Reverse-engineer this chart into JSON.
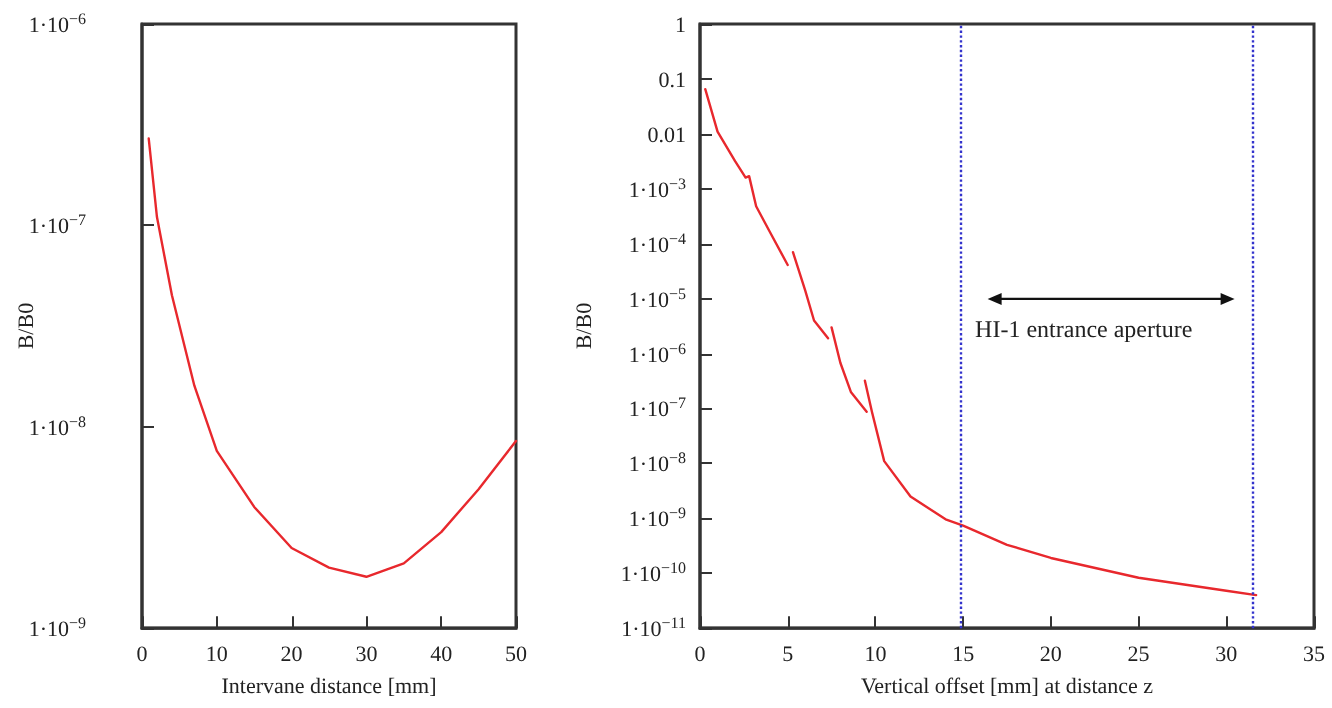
{
  "chart_data": [
    {
      "type": "line",
      "xlabel": "Intervane distance [mm]",
      "ylabel": "B/B0",
      "log": "y",
      "grid": false,
      "marker": "none",
      "line_style": "solid",
      "xlim": [
        0,
        50
      ],
      "xticks": [
        0,
        10,
        20,
        30,
        40,
        50
      ],
      "ylim": [
        1e-09,
        1e-06
      ],
      "yticks": [
        {
          "value": 1e-09,
          "label": "1·10$^{−9}$"
        },
        {
          "value": 1e-08,
          "label": "1·10$^{−8}$"
        },
        {
          "value": 1e-07,
          "label": "1·10$^{−7}$"
        },
        {
          "value": 1e-06,
          "label": "1·10$^{−6}$"
        }
      ],
      "series": [
        {
          "color": "#e8282d",
          "x": [
            0.9,
            2,
            4,
            7,
            10,
            15,
            20,
            25,
            30,
            35,
            40,
            45,
            50
          ],
          "values": [
            2.7e-07,
            1.1e-07,
            4.5e-08,
            1.6e-08,
            7.6e-09,
            4e-09,
            2.5e-09,
            2e-09,
            1.8e-09,
            2.1e-09,
            3e-09,
            4.9e-09,
            8.5e-09
          ]
        }
      ]
    },
    {
      "type": "line",
      "xlabel": "Vertical offset [mm] at distance z",
      "ylabel": "B/B0",
      "log": "y",
      "grid": false,
      "marker": "none",
      "line_style": "solid",
      "xlim": [
        0,
        35
      ],
      "xticks": [
        0,
        5,
        10,
        15,
        20,
        25,
        30,
        35
      ],
      "ylim": [
        1e-11,
        1
      ],
      "yticks": [
        {
          "value": 1e-11,
          "label": "1·10$^{−11}$"
        },
        {
          "value": 1e-10,
          "label": "1·10$^{−10}$"
        },
        {
          "value": 1e-09,
          "label": "1·10$^{−9}$"
        },
        {
          "value": 1e-08,
          "label": "1·10$^{−8}$"
        },
        {
          "value": 1e-07,
          "label": "1·10$^{−7}$"
        },
        {
          "value": 1e-06,
          "label": "1·10$^{−6}$"
        },
        {
          "value": 1e-05,
          "label": "1·10$^{−5}$"
        },
        {
          "value": 0.0001,
          "label": "1·10$^{−4}$"
        },
        {
          "value": 0.001,
          "label": "1·10$^{−3}$"
        },
        0.01,
        0.1,
        1
      ],
      "series": [
        {
          "color": "#e8282d",
          "x": [
            0.3,
            1,
            2,
            2.6,
            2.8,
            3.2,
            4,
            5,
            5.1,
            5.3,
            6,
            6.5,
            7.3,
            7.4,
            7.5,
            8,
            8.6,
            9.5,
            9.45,
            9.4,
            9.8,
            10.5,
            12,
            14,
            15,
            17.5,
            20,
            25,
            30,
            31.7
          ],
          "values": [
            0.065,
            0.011,
            0.0032,
            0.0016,
            0.0017,
            0.00048,
            0.00016,
            4.1e-05,
            null,
            7e-05,
            1.4e-05,
            4e-06,
            1.9e-06,
            null,
            3e-06,
            6.8e-07,
            2e-07,
            8.7e-08,
            null,
            3.2e-07,
            8.7e-08,
            1.1e-08,
            2.5e-09,
            9.6e-10,
            7.4e-10,
            3.3e-10,
            1.9e-10,
            8.3e-11,
            4.8e-11,
            4e-11
          ]
        }
      ],
      "ref_lines": [
        {
          "axis": "x",
          "value": 14.8,
          "color": "#3333cc",
          "line_style": "dotted"
        },
        {
          "axis": "x",
          "value": 31.5,
          "color": "#3333cc",
          "line_style": "dotted"
        }
      ],
      "annotations": [
        "HI-1 entrance aperture"
      ]
    }
  ]
}
